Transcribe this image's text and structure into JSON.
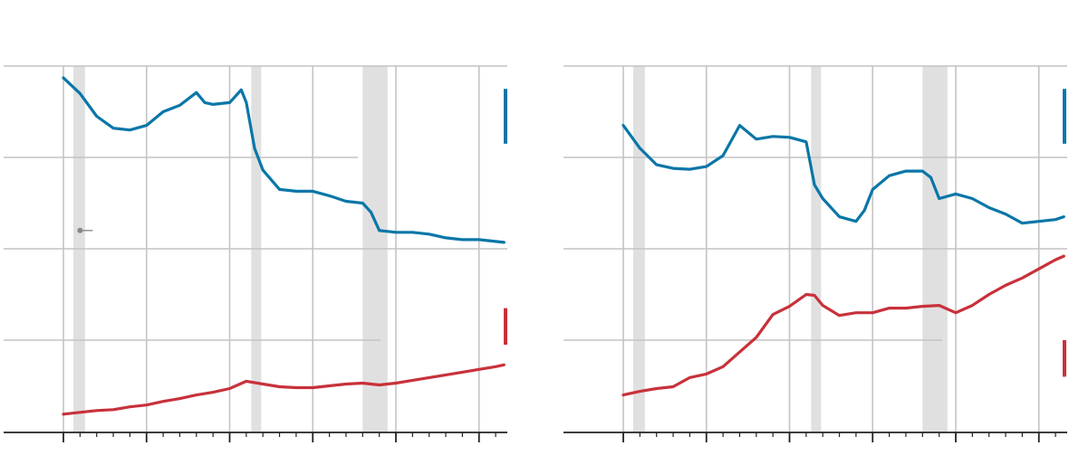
{
  "colors": {
    "series_blue": "#0a76a8",
    "series_red": "#c8313a",
    "gridline": "#c4c4c4",
    "recession_band": "#e0e0e1",
    "axis": "#222222",
    "annotation_dot": "#888888"
  },
  "chart_data": [
    {
      "type": "line",
      "title": "",
      "xlabel": "",
      "ylabel": "",
      "xlim": [
        0,
        26.5
      ],
      "ylim": [
        0,
        4
      ],
      "grid": true,
      "x_ticks_major": [
        0,
        5,
        10,
        15,
        20,
        25
      ],
      "x_ticks_minor_step": 1,
      "recession_bands": [
        [
          0.6,
          1.3
        ],
        [
          11.3,
          11.9
        ],
        [
          18,
          19.5
        ]
      ],
      "annotation_point": {
        "x": 1.0,
        "y": 2.2
      },
      "legend_swatches": [
        {
          "series": "blue",
          "y_range": [
            3.15,
            3.75
          ]
        },
        {
          "series": "red",
          "y_range": [
            0.95,
            1.35
          ]
        }
      ],
      "series": [
        {
          "color": "blue",
          "x": [
            0,
            1,
            2,
            3,
            4,
            5,
            6,
            7,
            8,
            8.5,
            9,
            10,
            10.7,
            11,
            11.5,
            12,
            13,
            14,
            15,
            16,
            17,
            18,
            18.5,
            19,
            20,
            21,
            22,
            23,
            24,
            25,
            26,
            26.5
          ],
          "y": [
            3.87,
            3.7,
            3.45,
            3.32,
            3.3,
            3.35,
            3.5,
            3.57,
            3.71,
            3.6,
            3.58,
            3.6,
            3.74,
            3.6,
            3.1,
            2.86,
            2.65,
            2.63,
            2.63,
            2.58,
            2.52,
            2.5,
            2.4,
            2.2,
            2.18,
            2.18,
            2.16,
            2.12,
            2.1,
            2.1,
            2.08,
            2.07
          ]
        },
        {
          "color": "red",
          "x": [
            0,
            1,
            2,
            3,
            4,
            5,
            6,
            7,
            8,
            9,
            10,
            11,
            12,
            13,
            14,
            15,
            16,
            17,
            18,
            19,
            20,
            21,
            22,
            23,
            24,
            25,
            26,
            26.5
          ],
          "y": [
            0.19,
            0.21,
            0.23,
            0.24,
            0.27,
            0.29,
            0.33,
            0.36,
            0.4,
            0.43,
            0.47,
            0.55,
            0.52,
            0.49,
            0.48,
            0.48,
            0.5,
            0.52,
            0.53,
            0.51,
            0.53,
            0.56,
            0.59,
            0.62,
            0.65,
            0.68,
            0.71,
            0.73
          ]
        }
      ]
    },
    {
      "type": "line",
      "title": "",
      "xlabel": "",
      "ylabel": "",
      "xlim": [
        0,
        26.5
      ],
      "ylim": [
        0,
        4
      ],
      "grid": true,
      "x_ticks_major": [
        0,
        5,
        10,
        15,
        20,
        25
      ],
      "x_ticks_minor_step": 1,
      "recession_bands": [
        [
          0.6,
          1.3
        ],
        [
          11.3,
          11.9
        ],
        [
          18,
          19.5
        ]
      ],
      "legend_swatches": [
        {
          "series": "blue",
          "y_range": [
            3.15,
            3.75
          ]
        },
        {
          "series": "red",
          "y_range": [
            0.6,
            1.0
          ]
        }
      ],
      "series": [
        {
          "color": "blue",
          "x": [
            0,
            1,
            2,
            3,
            4,
            5,
            6,
            7,
            8,
            9,
            10,
            11,
            11.5,
            12,
            13,
            14,
            14.5,
            15,
            16,
            17,
            18,
            18.5,
            19,
            20,
            21,
            22,
            23,
            24,
            25,
            26,
            26.5
          ],
          "y": [
            3.35,
            3.1,
            2.92,
            2.88,
            2.87,
            2.9,
            3.02,
            3.35,
            3.2,
            3.23,
            3.22,
            3.17,
            2.7,
            2.55,
            2.35,
            2.3,
            2.42,
            2.65,
            2.8,
            2.85,
            2.85,
            2.78,
            2.55,
            2.6,
            2.55,
            2.45,
            2.38,
            2.28,
            2.3,
            2.32,
            2.35
          ]
        },
        {
          "color": "red",
          "x": [
            0,
            1,
            2,
            3,
            4,
            5,
            6,
            7,
            8,
            9,
            10,
            11,
            11.5,
            12,
            13,
            14,
            15,
            16,
            17,
            18,
            19,
            20,
            21,
            22,
            23,
            24,
            25,
            26,
            26.5
          ],
          "y": [
            0.4,
            0.44,
            0.47,
            0.49,
            0.59,
            0.63,
            0.71,
            0.87,
            1.03,
            1.28,
            1.37,
            1.5,
            1.49,
            1.38,
            1.27,
            1.3,
            1.3,
            1.35,
            1.35,
            1.37,
            1.38,
            1.3,
            1.38,
            1.5,
            1.6,
            1.68,
            1.78,
            1.88,
            1.92
          ]
        }
      ]
    }
  ]
}
